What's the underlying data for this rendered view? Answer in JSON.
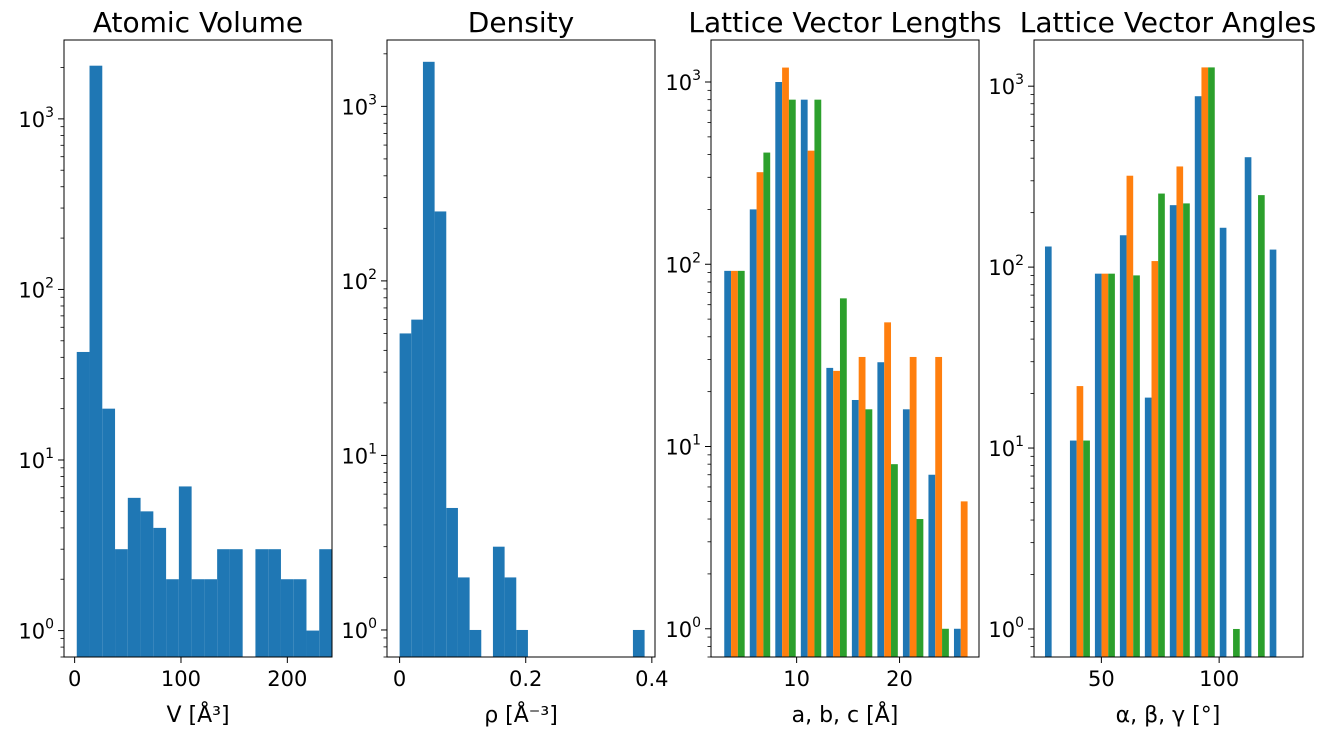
{
  "chart_data": [
    {
      "type": "bar",
      "title": "Atomic Volume",
      "xlabel": "V [Å³]",
      "yscale": "log",
      "xlim": [
        -10,
        242
      ],
      "ylim": [
        0.7,
        2900
      ],
      "xticks": [
        0,
        100,
        200
      ],
      "colors": [
        "#1f77b4"
      ],
      "series": [
        {
          "bins": [
            [
              2,
              14
            ],
            [
              14,
              26
            ],
            [
              26,
              38
            ],
            [
              38,
              50
            ],
            [
              50,
              62
            ],
            [
              62,
              74
            ],
            [
              74,
              86
            ],
            [
              86,
              98
            ],
            [
              98,
              110
            ],
            [
              110,
              122
            ],
            [
              122,
              134
            ],
            [
              134,
              146
            ],
            [
              146,
              158
            ],
            [
              158,
              170
            ],
            [
              170,
              182
            ],
            [
              182,
              194
            ],
            [
              194,
              206
            ],
            [
              206,
              218
            ],
            [
              218,
              230
            ],
            [
              230,
              242
            ]
          ],
          "counts": [
            43,
            2050,
            20,
            3,
            6,
            5,
            4,
            2,
            7,
            2,
            2,
            3,
            3,
            0,
            3,
            3,
            2,
            2,
            1,
            3
          ]
        }
      ]
    },
    {
      "type": "bar",
      "title": "Density",
      "xlabel": "ρ [Å⁻³]",
      "yscale": "log",
      "xlim": [
        -0.02,
        0.405
      ],
      "ylim": [
        0.7,
        2400
      ],
      "xticks": [
        0.0,
        0.2,
        0.4
      ],
      "colors": [
        "#1f77b4"
      ],
      "series": [
        {
          "bins": [
            [
              0.0,
              0.0185
            ],
            [
              0.0185,
              0.037
            ],
            [
              0.037,
              0.0555
            ],
            [
              0.0555,
              0.074
            ],
            [
              0.074,
              0.0925
            ],
            [
              0.0925,
              0.111
            ],
            [
              0.111,
              0.1295
            ],
            [
              0.1295,
              0.148
            ],
            [
              0.148,
              0.1665
            ],
            [
              0.1665,
              0.185
            ],
            [
              0.185,
              0.2035
            ],
            [
              0.2035,
              0.222
            ],
            [
              0.222,
              0.2405
            ],
            [
              0.2405,
              0.259
            ],
            [
              0.259,
              0.2775
            ],
            [
              0.2775,
              0.296
            ],
            [
              0.296,
              0.3145
            ],
            [
              0.3145,
              0.333
            ],
            [
              0.333,
              0.3515
            ],
            [
              0.3515,
              0.37
            ],
            [
              0.37,
              0.3885
            ]
          ],
          "counts": [
            50,
            60,
            1800,
            250,
            5,
            2,
            1,
            0,
            3,
            2,
            1,
            0,
            0,
            0,
            0,
            0,
            0,
            0,
            0,
            0,
            1
          ]
        }
      ]
    },
    {
      "type": "bar",
      "title": "Lattice Vector Lengths",
      "xlabel": "a, b, c [Å]",
      "yscale": "log",
      "xlim": [
        1.68,
        27.72
      ],
      "ylim": [
        0.7,
        1700
      ],
      "xticks": [
        10,
        20
      ],
      "colors": [
        "#1f77b4",
        "#ff7f0e",
        "#2ca02c"
      ],
      "bin_edges": [
        2.72,
        5.2,
        7.68,
        10.16,
        12.64,
        15.12,
        17.6,
        20.08,
        22.56,
        25.04,
        27.52
      ],
      "series": [
        {
          "counts": [
            92,
            200,
            1000,
            800,
            27,
            18,
            29,
            16,
            7,
            1
          ]
        },
        {
          "counts": [
            92,
            320,
            1200,
            420,
            26,
            31,
            48,
            31,
            31,
            5
          ]
        },
        {
          "counts": [
            92,
            410,
            800,
            800,
            65,
            16,
            8,
            4,
            1,
            0
          ]
        }
      ]
    },
    {
      "type": "bar",
      "title": "Lattice Vector Angles",
      "xlabel": "α, β, γ [°]",
      "yscale": "log",
      "xlim": [
        21.4,
        135.6
      ],
      "ylim": [
        0.7,
        1800
      ],
      "xticks": [
        50,
        100
      ],
      "colors": [
        "#1f77b4",
        "#ff7f0e",
        "#2ca02c"
      ],
      "bin_edges": [
        25.0,
        35.6,
        46.2,
        56.8,
        67.4,
        78.0,
        88.6,
        99.2,
        109.8,
        120.4,
        131.0
      ],
      "series": [
        {
          "counts": [
            130,
            11,
            92,
            150,
            19,
            220,
            880,
            165,
            405,
            125
          ]
        },
        {
          "counts": [
            0,
            22,
            92,
            320,
            108,
            360,
            1270,
            0,
            0,
            0
          ]
        },
        {
          "counts": [
            0,
            11,
            92,
            90,
            255,
            225,
            1270,
            1,
            250,
            0
          ]
        }
      ]
    }
  ]
}
